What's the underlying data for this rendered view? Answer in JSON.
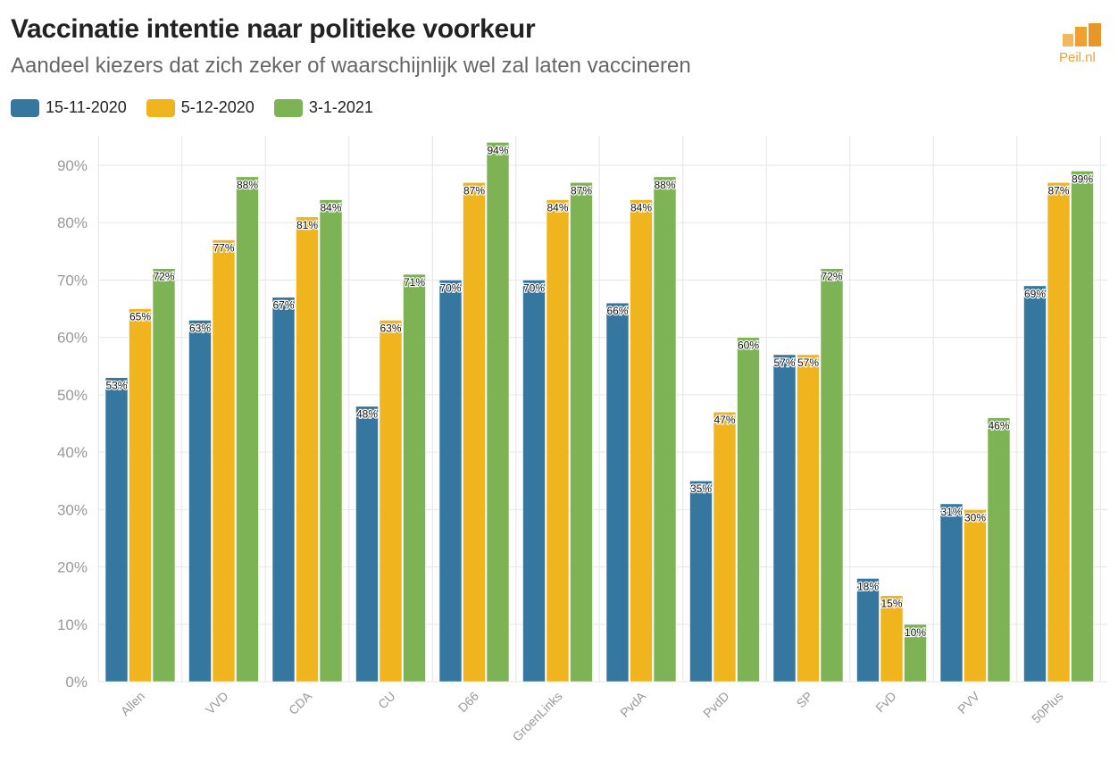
{
  "header": {
    "title": "Vaccinatie intentie naar politieke voorkeur",
    "subtitle": "Aandeel kiezers dat zich zeker of waarschijnlijk wel zal laten vaccineren"
  },
  "logo": {
    "text": "Peil.nl",
    "icon": "bar-chart-logo-icon"
  },
  "colors": {
    "series1": "#35779f",
    "series2": "#f0b41e",
    "series3": "#7db355",
    "grid": "#e6e6e6",
    "tick": "#999999"
  },
  "chart_data": {
    "type": "bar",
    "categories": [
      "Allen",
      "VVD",
      "CDA",
      "CU",
      "D66",
      "GroenLinks",
      "PvdA",
      "PvdD",
      "SP",
      "FvD",
      "PVV",
      "50Plus"
    ],
    "series": [
      {
        "name": "15-11-2020",
        "values": [
          53,
          63,
          67,
          48,
          70,
          70,
          66,
          35,
          57,
          18,
          31,
          69
        ]
      },
      {
        "name": "5-12-2020",
        "values": [
          65,
          77,
          81,
          63,
          87,
          84,
          84,
          47,
          57,
          15,
          30,
          87
        ]
      },
      {
        "name": "3-1-2021",
        "values": [
          72,
          88,
          84,
          71,
          94,
          87,
          88,
          60,
          72,
          10,
          46,
          89
        ]
      }
    ],
    "ylim": [
      0,
      95
    ],
    "yticks": [
      "0%",
      "10%",
      "20%",
      "30%",
      "40%",
      "50%",
      "60%",
      "70%",
      "80%",
      "90%"
    ],
    "value_suffix": "%",
    "grid": true,
    "legend_position": "top-left"
  }
}
